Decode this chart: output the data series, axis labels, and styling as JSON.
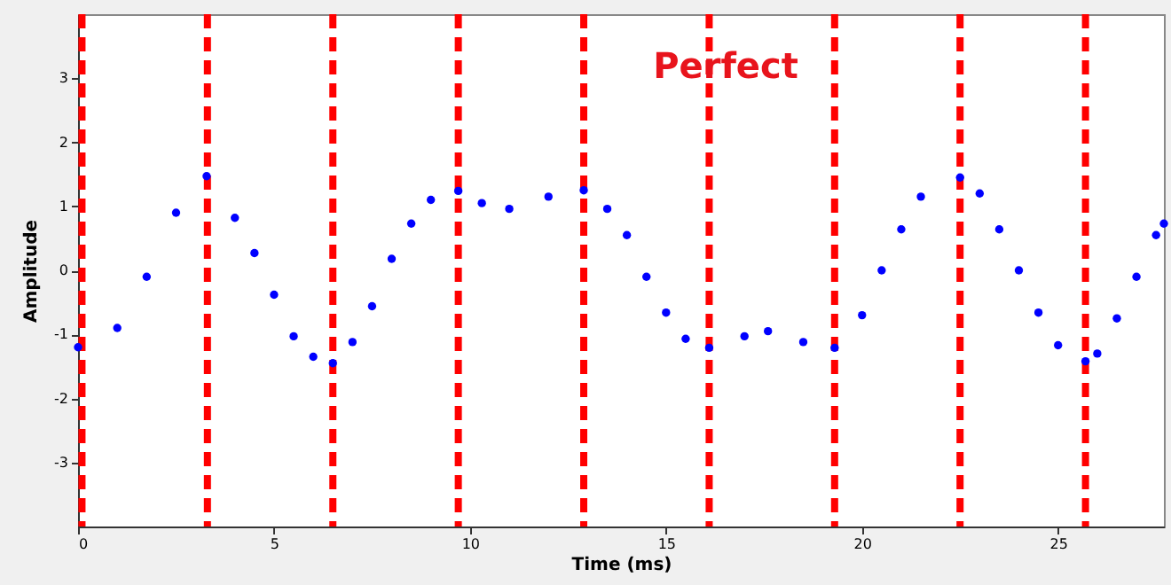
{
  "chart_data": {
    "type": "scatter",
    "xlabel": "Time (ms)",
    "ylabel": "Amplitude",
    "annotations": [
      "Perfect"
    ],
    "xlim": [
      0,
      27.7
    ],
    "ylim": [
      -4,
      4
    ],
    "xticks": [
      0,
      5,
      10,
      15,
      20,
      25
    ],
    "yticks": [
      -3,
      -2,
      -1,
      0,
      1,
      2,
      3
    ],
    "grid": false,
    "marker": "circle",
    "series": [
      {
        "color": "#0000ff",
        "x": [
          0,
          1,
          1.75,
          2.5,
          3.28,
          4,
          4.5,
          5,
          5.5,
          6,
          6.5,
          7,
          7.5,
          8,
          8.5,
          9,
          9.7,
          10.3,
          11,
          12,
          12.9,
          13.5,
          14,
          14.5,
          15,
          15.5,
          16.1,
          17,
          17.6,
          18.5,
          19.3,
          20,
          20.5,
          21,
          21.5,
          22.5,
          23,
          23.5,
          24,
          24.5,
          25,
          25.7,
          26,
          26.5,
          27,
          27.5,
          27.7
        ],
        "values": [
          -1.2,
          -0.9,
          -0.1,
          0.9,
          1.47,
          0.82,
          0.27,
          -0.38,
          -1.03,
          -1.35,
          -1.45,
          -1.12,
          -0.56,
          0.18,
          0.73,
          1.1,
          1.24,
          1.05,
          0.96,
          1.15,
          1.25,
          0.96,
          0.55,
          -0.1,
          -0.66,
          -1.07,
          -1.21,
          -1.03,
          -0.95,
          -1.12,
          -1.21,
          -0.7,
          0,
          0.64,
          1.15,
          1.45,
          1.2,
          0.64,
          0,
          -0.66,
          -1.17,
          -1.42,
          -1.3,
          -0.75,
          -0.1,
          0.55,
          0.73
        ]
      }
    ],
    "ref_lines": [
      {
        "axis": "x",
        "value": 0.1,
        "color": "#ff0000",
        "line_style": "dashed"
      },
      {
        "axis": "x",
        "value": 3.3,
        "color": "#ff0000",
        "line_style": "dashed"
      },
      {
        "axis": "x",
        "value": 6.5,
        "color": "#ff0000",
        "line_style": "dashed"
      },
      {
        "axis": "x",
        "value": 9.7,
        "color": "#ff0000",
        "line_style": "dashed"
      },
      {
        "axis": "x",
        "value": 12.9,
        "color": "#ff0000",
        "line_style": "dashed"
      },
      {
        "axis": "x",
        "value": 16.1,
        "color": "#ff0000",
        "line_style": "dashed"
      },
      {
        "axis": "x",
        "value": 19.3,
        "color": "#ff0000",
        "line_style": "dashed"
      },
      {
        "axis": "x",
        "value": 22.5,
        "color": "#ff0000",
        "line_style": "dashed"
      },
      {
        "axis": "x",
        "value": 25.7,
        "color": "#ff0000",
        "line_style": "dashed"
      }
    ]
  }
}
